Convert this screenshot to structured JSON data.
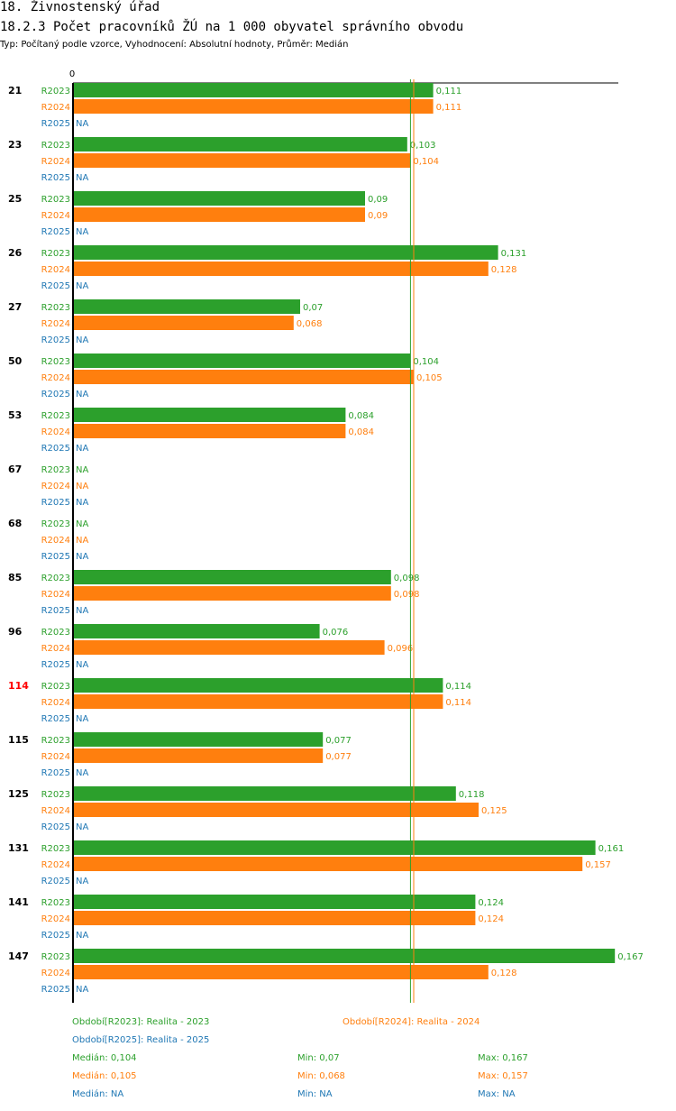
{
  "header": {
    "title": "18. Živnostenský úřad",
    "subtitle": "18.2.3 Počet pracovníků ŽÚ na 1 000 obyvatel správního obvodu",
    "type_line": "Typ: Počítaný podle vzorce, Vyhodnocení: Absolutní hodnoty, Průměr: Medián"
  },
  "colors": {
    "r2023": "#2ca02c",
    "r2024": "#ff7f0e",
    "r2025": "#1f77b4",
    "highlight": "#ff0000"
  },
  "chart_data": {
    "type": "bar",
    "orientation": "horizontal",
    "axis_zero_label": "0",
    "xlim": [
      0,
      0.175
    ],
    "na_label": "NA",
    "highlight_category": "114",
    "categories": [
      "21",
      "23",
      "25",
      "26",
      "27",
      "50",
      "53",
      "67",
      "68",
      "85",
      "96",
      "114",
      "115",
      "125",
      "131",
      "141",
      "147"
    ],
    "series": [
      {
        "name": "R2023",
        "values": [
          0.111,
          0.103,
          0.09,
          0.131,
          0.07,
          0.104,
          0.084,
          null,
          null,
          0.098,
          0.076,
          0.114,
          0.077,
          0.118,
          0.161,
          0.124,
          0.167
        ],
        "labels": [
          "0,111",
          "0,103",
          "0,09",
          "0,131",
          "0,07",
          "0,104",
          "0,084",
          "NA",
          "NA",
          "0,098",
          "0,076",
          "0,114",
          "0,077",
          "0,118",
          "0,161",
          "0,124",
          "0,167"
        ]
      },
      {
        "name": "R2024",
        "values": [
          0.111,
          0.104,
          0.09,
          0.128,
          0.068,
          0.105,
          0.084,
          null,
          null,
          0.098,
          0.096,
          0.114,
          0.077,
          0.125,
          0.157,
          0.124,
          0.128
        ],
        "labels": [
          "0,111",
          "0,104",
          "0,09",
          "0,128",
          "0,068",
          "0,105",
          "0,084",
          "NA",
          "NA",
          "0,098",
          "0,096",
          "0,114",
          "0,077",
          "0,125",
          "0,157",
          "0,124",
          "0,128"
        ]
      },
      {
        "name": "R2025",
        "values": [
          null,
          null,
          null,
          null,
          null,
          null,
          null,
          null,
          null,
          null,
          null,
          null,
          null,
          null,
          null,
          null,
          null
        ],
        "labels": [
          "NA",
          "NA",
          "NA",
          "NA",
          "NA",
          "NA",
          "NA",
          "NA",
          "NA",
          "NA",
          "NA",
          "NA",
          "NA",
          "NA",
          "NA",
          "NA",
          "NA"
        ]
      }
    ],
    "median_lines": [
      {
        "series": "R2023",
        "value": 0.104
      },
      {
        "series": "R2024",
        "value": 0.105
      }
    ]
  },
  "legend": {
    "r2023": "Období[R2023]: Realita - 2023",
    "r2024": "Období[R2024]: Realita - 2024",
    "r2025": "Období[R2025]: Realita - 2025"
  },
  "stats": {
    "r2023": {
      "median": "Medián: 0,104",
      "min": "Min: 0,07",
      "max": "Max: 0,167"
    },
    "r2024": {
      "median": "Medián: 0,105",
      "min": "Min: 0,068",
      "max": "Max: 0,157"
    },
    "r2025": {
      "median": "Medián: NA",
      "min": "Min: NA",
      "max": "Max: NA"
    }
  }
}
